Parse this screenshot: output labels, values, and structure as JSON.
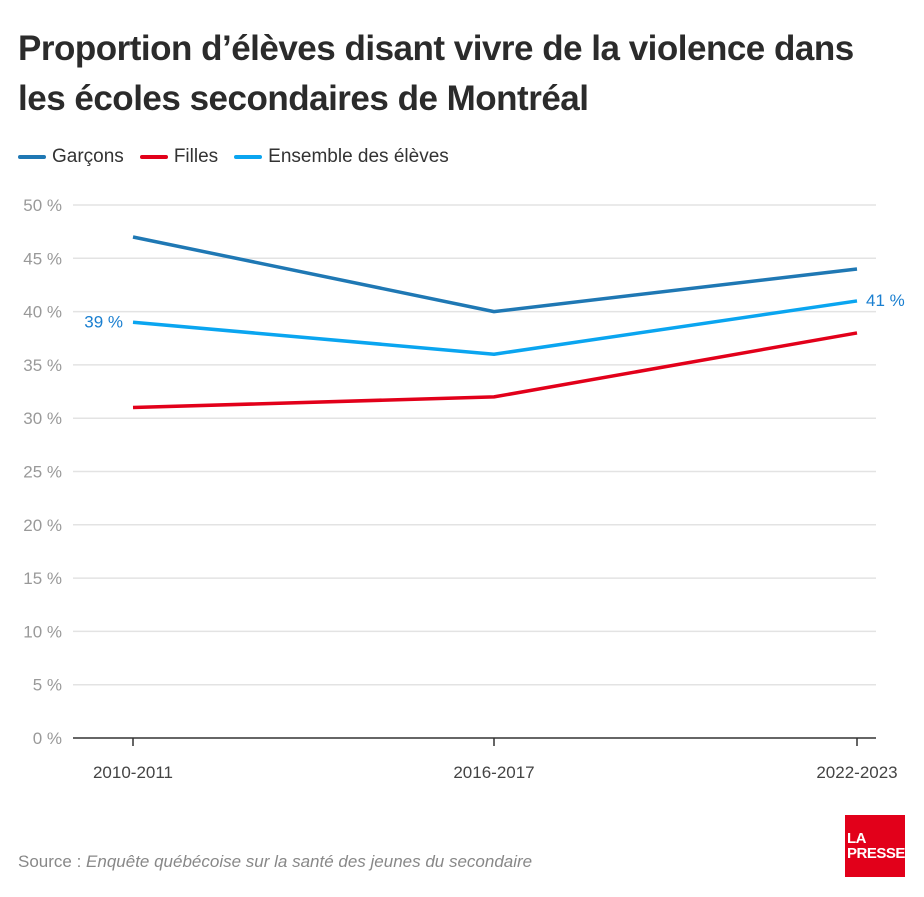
{
  "chart_data": {
    "type": "line",
    "title": "Proportion d’élèves disant vivre de la violence dans les écoles secondaires de Montréal",
    "categories": [
      "2010-2011",
      "2016-2017",
      "2022-2023"
    ],
    "series": [
      {
        "name": "Garçons",
        "values": [
          47,
          40,
          44
        ],
        "color": "#1f78b4"
      },
      {
        "name": "Filles",
        "values": [
          31,
          32,
          38
        ],
        "color": "#e2001a"
      },
      {
        "name": "Ensemble des élèves",
        "values": [
          39,
          36,
          41
        ],
        "color": "#0aa5f0"
      }
    ],
    "data_labels": [
      {
        "series": "Ensemble des élèves",
        "category": "2010-2011",
        "text": "39 %"
      },
      {
        "series": "Ensemble des élèves",
        "category": "2022-2023",
        "text": "41 %"
      }
    ],
    "ylim": [
      0,
      50
    ],
    "yticks": [
      "0 %",
      "5 %",
      "10 %",
      "15 %",
      "20 %",
      "25 %",
      "30 %",
      "35 %",
      "40 %",
      "45 %",
      "50 %"
    ],
    "grid": true,
    "legend": "top-left",
    "data_label_color": "#1a7fd0"
  },
  "source": {
    "prefix": "Source : ",
    "text": "Enquête québécoise sur la santé des jeunes du secondaire"
  },
  "logo": {
    "line1": "LA",
    "line2": "PRESSE",
    "color": "#e2001a"
  }
}
